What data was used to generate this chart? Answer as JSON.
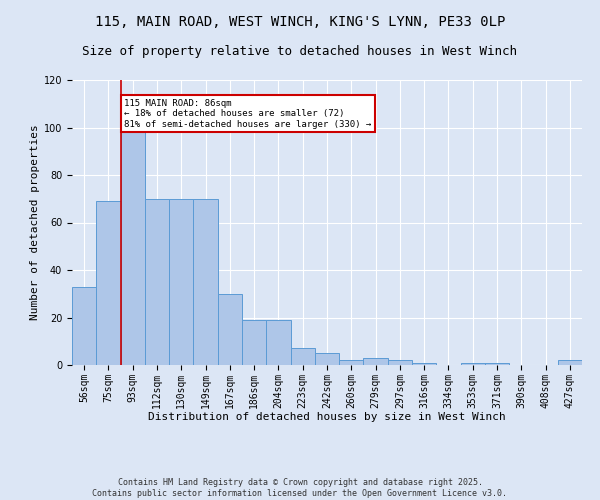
{
  "title_line1": "115, MAIN ROAD, WEST WINCH, KING'S LYNN, PE33 0LP",
  "title_line2": "Size of property relative to detached houses in West Winch",
  "xlabel": "Distribution of detached houses by size in West Winch",
  "ylabel": "Number of detached properties",
  "categories": [
    "56sqm",
    "75sqm",
    "93sqm",
    "112sqm",
    "130sqm",
    "149sqm",
    "167sqm",
    "186sqm",
    "204sqm",
    "223sqm",
    "242sqm",
    "260sqm",
    "279sqm",
    "297sqm",
    "316sqm",
    "334sqm",
    "353sqm",
    "371sqm",
    "390sqm",
    "408sqm",
    "427sqm"
  ],
  "values": [
    33,
    69,
    99,
    70,
    70,
    70,
    30,
    19,
    19,
    7,
    5,
    2,
    3,
    2,
    1,
    0,
    1,
    1,
    0,
    0,
    2
  ],
  "bar_color": "#aec6e8",
  "bar_edge_color": "#5b9bd5",
  "vline_x": 1.5,
  "vline_color": "#cc0000",
  "annotation_text": "115 MAIN ROAD: 86sqm\n← 18% of detached houses are smaller (72)\n81% of semi-detached houses are larger (330) →",
  "annotation_box_color": "#cc0000",
  "bg_color": "#dce6f5",
  "plot_bg_color": "#dce6f5",
  "ylim": [
    0,
    120
  ],
  "yticks": [
    0,
    20,
    40,
    60,
    80,
    100,
    120
  ],
  "footer": "Contains HM Land Registry data © Crown copyright and database right 2025.\nContains public sector information licensed under the Open Government Licence v3.0.",
  "title_fontsize": 10,
  "subtitle_fontsize": 9,
  "axis_label_fontsize": 8,
  "tick_fontsize": 7,
  "footer_fontsize": 6
}
